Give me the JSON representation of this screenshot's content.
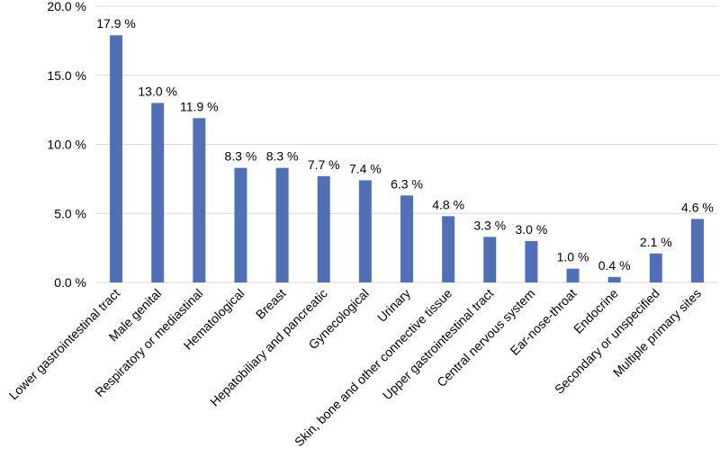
{
  "chart_data": {
    "type": "bar",
    "title": "",
    "xlabel": "",
    "ylabel": "",
    "ylim": [
      0,
      20
    ],
    "y_ticks": [
      "0.0 %",
      "5.0 %",
      "10.0 %",
      "15.0 %",
      "20.0 %"
    ],
    "y_tick_values": [
      0,
      5,
      10,
      15,
      20
    ],
    "grid": true,
    "legend": "none",
    "bar_color": "#4f6fb7",
    "categories": [
      "Lower gastrointestinal tract",
      "Male genital",
      "Respiratory or mediastinal",
      "Hematological",
      "Breast",
      "Hepatobiliary and pancreatic",
      "Gynecological",
      "Urinary",
      "Skin, bone and other connective tissue",
      "Upper gastrointestinal tract",
      "Central nervous system",
      "Ear-nose-throat",
      "Endocrine",
      "Secondary or unspecified",
      "Multiple primary sites"
    ],
    "values": [
      17.9,
      13.0,
      11.9,
      8.3,
      8.3,
      7.7,
      7.4,
      6.3,
      4.8,
      3.3,
      3.0,
      1.0,
      0.4,
      2.1,
      4.6
    ],
    "value_labels": [
      "17.9 %",
      "13.0 %",
      "11.9 %",
      "8.3 %",
      "8.3 %",
      "7.7 %",
      "7.4 %",
      "6.3 %",
      "4.8 %",
      "3.3 %",
      "3.0 %",
      "1.0 %",
      "0.4 %",
      "2.1 %",
      "4.6 %"
    ]
  }
}
